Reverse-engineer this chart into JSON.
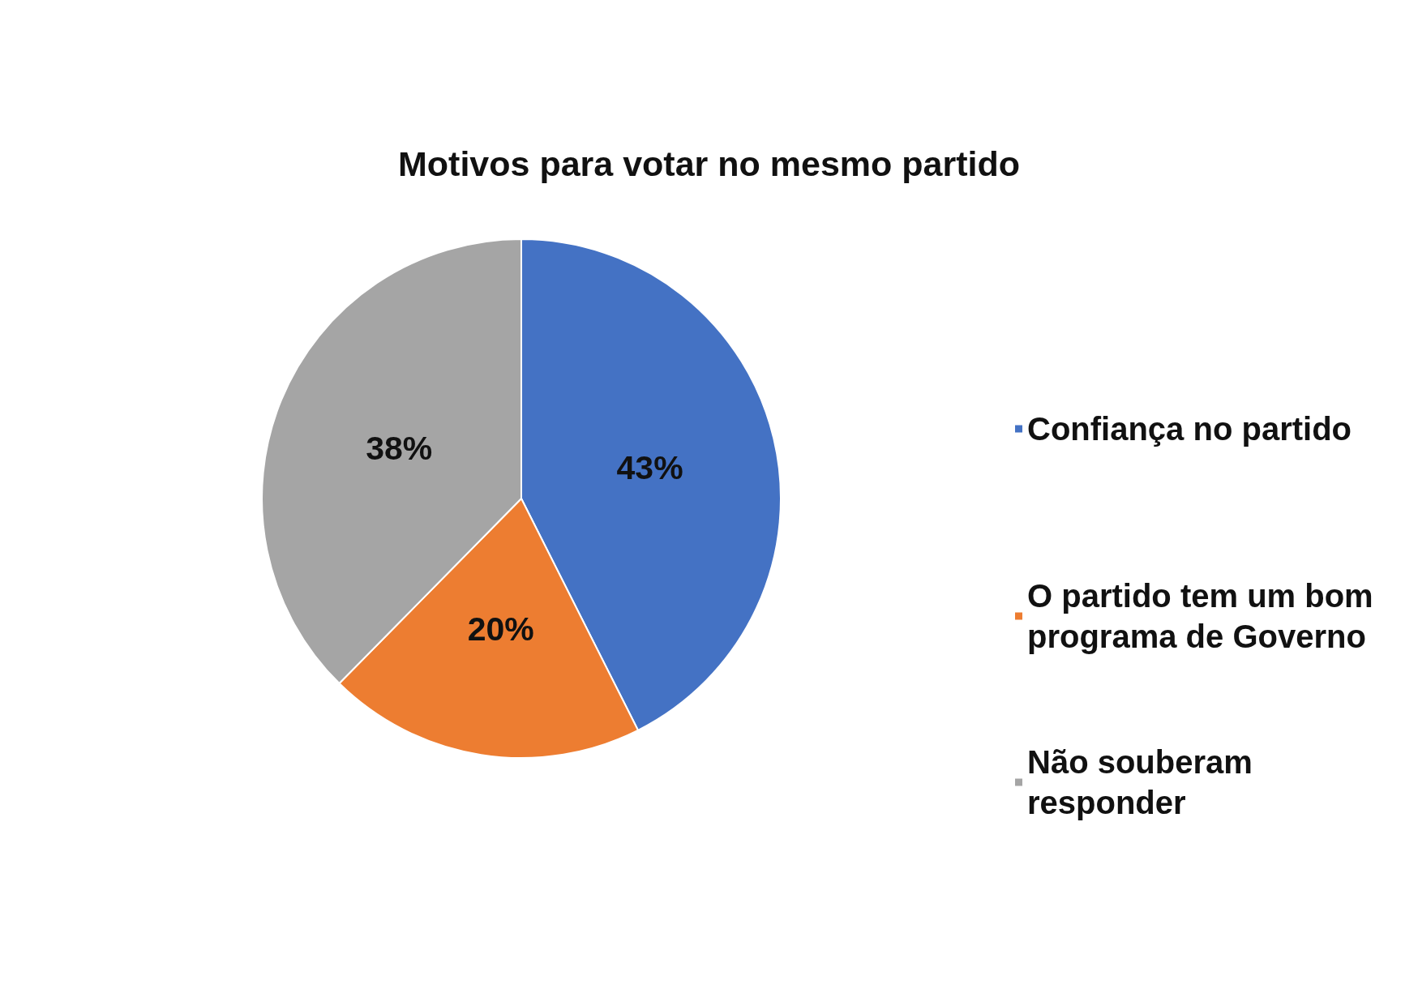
{
  "chart_data": {
    "type": "pie",
    "title": "Motivos para votar no mesmo partido",
    "categories": [
      "Confiança no partido",
      "O partido tem um bom programa de Governo",
      "Não souberam responder"
    ],
    "values": [
      43,
      20,
      38
    ],
    "value_labels": [
      "43%",
      "20%",
      "38%"
    ],
    "colors": [
      "#4472c4",
      "#ed7d31",
      "#a5a5a5"
    ],
    "legend": "right"
  }
}
